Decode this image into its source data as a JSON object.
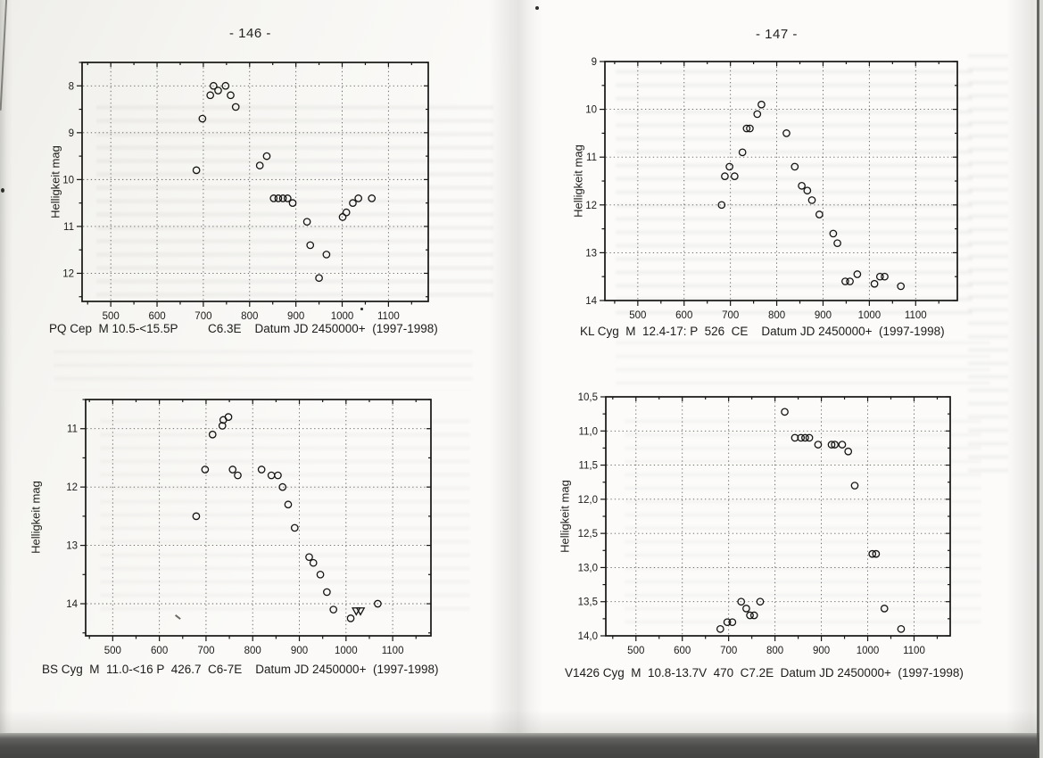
{
  "page": {
    "left_page_number": "- 146 -",
    "right_page_number": "- 147 -"
  },
  "chart_data": [
    {
      "id": "pq-cep",
      "type": "scatter",
      "star": "PQ Cep",
      "info": "M 10.5-<15.5P",
      "code": "C6.3E",
      "x_title": "Datum JD 2450000+",
      "years": "(1997-1998)",
      "caption": "PQ Cep  M 10.5-<15.5P         C6.3E    Datum JD 2450000+  (1997-1998)",
      "ylabel": "Helligkeit mag",
      "grid": "dotted",
      "legend": "none",
      "marker": "open-circle",
      "y_axis_inverted_magnitude": true,
      "xlim": [
        438,
        1186
      ],
      "ylim": [
        7.5,
        12.6
      ],
      "x_ticks": [
        500,
        600,
        700,
        800,
        900,
        1000,
        1100
      ],
      "x_tick_labels": [
        "500",
        "600",
        "700",
        "800",
        "900",
        "1000",
        "1100"
      ],
      "y_ticks": [
        8,
        9,
        10,
        11,
        12
      ],
      "y_tick_labels": [
        "8",
        "9",
        "10",
        "11",
        "12"
      ],
      "points": [
        [
          685,
          9.8
        ],
        [
          698,
          8.7
        ],
        [
          715,
          8.2
        ],
        [
          722,
          8.0
        ],
        [
          732,
          8.1
        ],
        [
          748,
          8.0
        ],
        [
          759,
          8.2
        ],
        [
          770,
          8.45
        ],
        [
          822,
          9.7
        ],
        [
          837,
          9.5
        ],
        [
          852,
          10.4
        ],
        [
          862,
          10.4
        ],
        [
          872,
          10.4
        ],
        [
          882,
          10.4
        ],
        [
          893,
          10.5
        ],
        [
          924,
          10.9
        ],
        [
          931,
          11.4
        ],
        [
          950,
          12.1
        ],
        [
          966,
          11.6
        ],
        [
          1001,
          10.8
        ],
        [
          1009,
          10.7
        ],
        [
          1023,
          10.5
        ],
        [
          1035,
          10.4
        ],
        [
          1064,
          10.4
        ]
      ]
    },
    {
      "id": "kl-cyg",
      "type": "scatter",
      "star": "KL Cyg",
      "info": "M  12.4-17: P  526",
      "code": "CE",
      "x_title": "Datum JD 2450000+",
      "years": "(1997-1998)",
      "caption": "KL Cyg  M  12.4-17: P  526  CE    Datum JD 2450000+  (1997-1998)",
      "ylabel": "Helligkeit mag",
      "grid": "dotted",
      "legend": "none",
      "marker": "open-circle",
      "y_axis_inverted_magnitude": true,
      "xlim": [
        429,
        1190
      ],
      "ylim": [
        9.0,
        14.0
      ],
      "x_ticks": [
        500,
        600,
        700,
        800,
        900,
        1000,
        1100
      ],
      "x_tick_labels": [
        "500",
        "600",
        "700",
        "800",
        "900",
        "1000",
        "1100"
      ],
      "y_ticks": [
        9,
        10,
        11,
        12,
        13,
        14
      ],
      "y_tick_labels": [
        "9",
        "10",
        "11",
        "12",
        "13",
        "14"
      ],
      "points": [
        [
          681,
          12.0
        ],
        [
          688,
          11.4
        ],
        [
          698,
          11.2
        ],
        [
          709,
          11.4
        ],
        [
          726,
          10.9
        ],
        [
          735,
          10.4
        ],
        [
          742,
          10.4
        ],
        [
          758,
          10.1
        ],
        [
          767,
          9.9
        ],
        [
          821,
          10.5
        ],
        [
          839,
          11.2
        ],
        [
          854,
          11.6
        ],
        [
          866,
          11.7
        ],
        [
          876,
          11.9
        ],
        [
          892,
          12.2
        ],
        [
          922,
          12.6
        ],
        [
          931,
          12.8
        ],
        [
          948,
          13.6
        ],
        [
          958,
          13.6
        ],
        [
          974,
          13.45
        ],
        [
          1011,
          13.65
        ],
        [
          1023,
          13.5
        ],
        [
          1033,
          13.5
        ],
        [
          1068,
          13.7
        ]
      ]
    },
    {
      "id": "bs-cyg",
      "type": "scatter",
      "star": "BS Cyg",
      "info": "M  11.0-<16 P  426.7",
      "code": "C6-7E",
      "x_title": "Datum JD 2450000+",
      "years": "(1997-1998)",
      "caption": "BS Cyg  M  11.0-<16 P  426.7  C6-7E    Datum JD 2450000+  (1997-1998)",
      "ylabel": "Helligkeit mag",
      "grid": "dotted",
      "legend": "none",
      "marker": "open-circle",
      "limit_marker": "open-triangle-down",
      "y_axis_inverted_magnitude": true,
      "xlim": [
        442,
        1182
      ],
      "ylim": [
        10.5,
        14.55
      ],
      "x_ticks": [
        500,
        600,
        700,
        800,
        900,
        1000,
        1100
      ],
      "x_tick_labels": [
        "500",
        "600",
        "700",
        "800",
        "900",
        "1000",
        "1100"
      ],
      "y_ticks": [
        11,
        12,
        13,
        14
      ],
      "y_tick_labels": [
        "11",
        "12",
        "13",
        "14"
      ],
      "points": [
        [
          679,
          12.5
        ],
        [
          698,
          11.7
        ],
        [
          714,
          11.1
        ],
        [
          735,
          10.95
        ],
        [
          737,
          10.85
        ],
        [
          748,
          10.8
        ],
        [
          757,
          11.7
        ],
        [
          768,
          11.8
        ],
        [
          819,
          11.7
        ],
        [
          840,
          11.8
        ],
        [
          854,
          11.8
        ],
        [
          864,
          12.0
        ],
        [
          876,
          12.3
        ],
        [
          890,
          12.7
        ],
        [
          921,
          13.2
        ],
        [
          930,
          13.3
        ],
        [
          945,
          13.5
        ],
        [
          959,
          13.8
        ],
        [
          973,
          14.1
        ],
        [
          1010,
          14.25
        ],
        [
          1068,
          14.0
        ]
      ],
      "limit_points": [
        [
          1022,
          14.12
        ],
        [
          1031,
          14.12
        ]
      ]
    },
    {
      "id": "v1426-cyg",
      "type": "scatter",
      "star": "V1426 Cyg",
      "info": "M  10.8-13.7V  470",
      "code": "C7.2E",
      "x_title": "Datum JD 2450000+",
      "years": "(1997-1998)",
      "caption": "V1426 Cyg  M  10.8-13.7V  470  C7.2E  Datum JD 2450000+  (1997-1998)",
      "ylabel": "Helligkeit mag",
      "grid": "dotted",
      "legend": "none",
      "marker": "open-circle",
      "y_axis_inverted_magnitude": true,
      "xlim": [
        435,
        1178
      ],
      "ylim": [
        10.5,
        14.0
      ],
      "x_ticks": [
        500,
        600,
        700,
        800,
        900,
        1000,
        1100
      ],
      "x_tick_labels": [
        "500",
        "600",
        "700",
        "800",
        "900",
        "1000",
        "1100"
      ],
      "y_ticks": [
        10.5,
        11,
        11.5,
        12,
        12.5,
        13,
        13.5,
        14
      ],
      "y_tick_labels": [
        "10,5",
        "11,0",
        "11,5",
        "12,0",
        "12,5",
        "13,0",
        "13,5",
        "14,0"
      ],
      "points": [
        [
          682,
          13.9
        ],
        [
          697,
          13.8
        ],
        [
          708,
          13.8
        ],
        [
          727,
          13.5
        ],
        [
          738,
          13.6
        ],
        [
          746,
          13.7
        ],
        [
          755,
          13.7
        ],
        [
          768,
          13.5
        ],
        [
          821,
          10.72
        ],
        [
          843,
          11.1
        ],
        [
          856,
          11.1
        ],
        [
          865,
          11.1
        ],
        [
          874,
          11.1
        ],
        [
          893,
          11.2
        ],
        [
          922,
          11.2
        ],
        [
          929,
          11.2
        ],
        [
          945,
          11.2
        ],
        [
          958,
          11.3
        ],
        [
          972,
          11.8
        ],
        [
          1010,
          12.8
        ],
        [
          1018,
          12.8
        ],
        [
          1036,
          13.6
        ],
        [
          1072,
          13.9
        ]
      ]
    }
  ]
}
